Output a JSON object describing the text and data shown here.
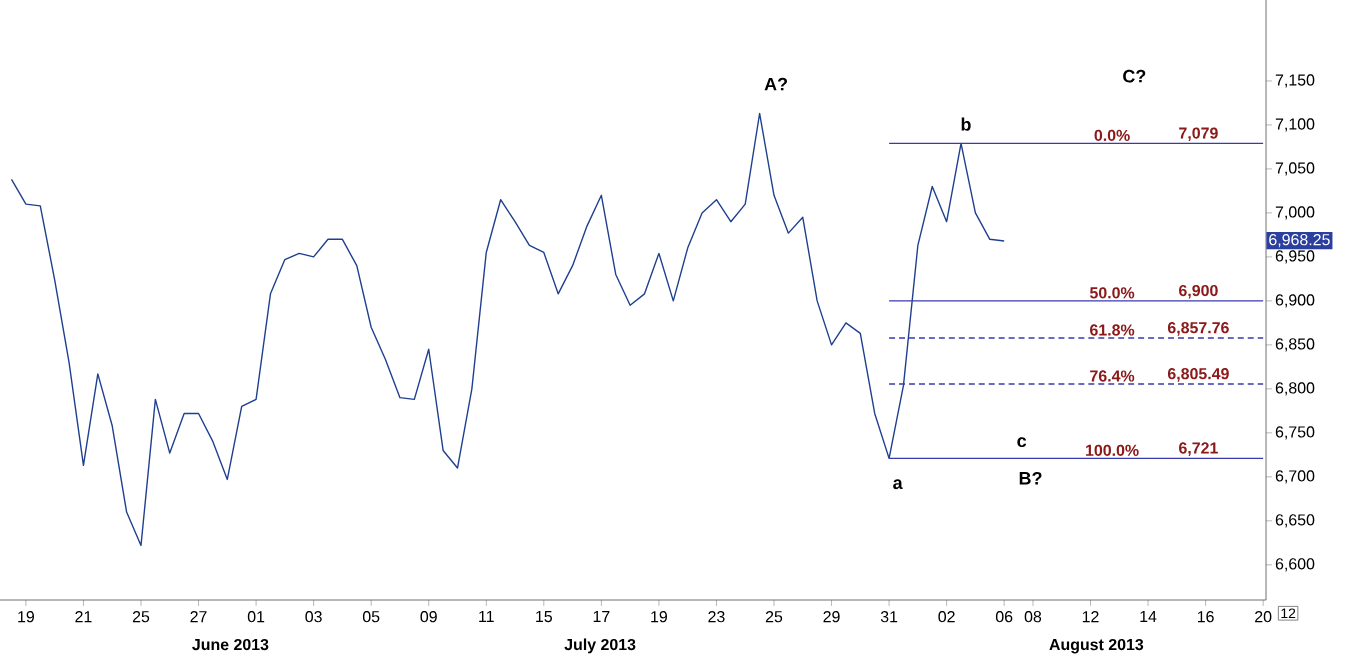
{
  "chart_data": {
    "type": "line",
    "categories": [
      null,
      "19",
      null,
      null,
      null,
      "21",
      null,
      null,
      null,
      "25",
      null,
      null,
      null,
      "27",
      null,
      null,
      null,
      "01",
      null,
      null,
      null,
      "03",
      null,
      null,
      null,
      "05",
      null,
      null,
      null,
      "09",
      null,
      null,
      null,
      "11",
      null,
      null,
      null,
      "15",
      null,
      null,
      null,
      "17",
      null,
      null,
      null,
      "19",
      null,
      null,
      null,
      "23",
      null,
      null,
      null,
      "25",
      null,
      null,
      null,
      "29",
      null,
      null,
      null,
      "31",
      null,
      null,
      null,
      "02",
      null,
      null,
      null,
      "06",
      null,
      "08",
      null,
      null,
      null,
      "12",
      null,
      null,
      null,
      "14",
      null,
      null,
      null,
      "16",
      null,
      null,
      null,
      "20"
    ],
    "series": [
      {
        "color": "#1f3f8f",
        "line_style": "solid",
        "values": [
          7038,
          7010,
          7008,
          6924,
          6830,
          6713,
          6817,
          6758,
          6660,
          6622,
          6788,
          6727,
          6772,
          6772,
          6740,
          6697,
          6780,
          6788,
          6908,
          6947,
          6954,
          6950,
          6970,
          6970,
          6940,
          6870,
          6833,
          6790,
          6788,
          6845,
          6730,
          6710,
          6800,
          6955,
          7015,
          6990,
          6963,
          6955,
          6908,
          6940,
          6985,
          7020,
          6930,
          6895,
          6908,
          6954,
          6900,
          6960,
          7000,
          7015,
          6990,
          7010,
          7113,
          7020,
          6977,
          6995,
          6900,
          6850,
          6875,
          6863,
          6772,
          6721,
          6804,
          6963,
          7030,
          6990,
          7079,
          7000,
          6970,
          6968,
          null,
          null,
          null,
          null,
          null,
          null,
          null,
          null,
          null,
          null,
          null,
          null,
          null,
          null,
          null,
          null,
          null,
          null
        ]
      },
      {
        "color": "#3a3ab0",
        "line_style": "solid",
        "values": [
          null,
          null,
          null,
          null,
          null,
          null,
          null,
          null,
          null,
          null,
          null,
          null,
          null,
          null,
          null,
          null,
          null,
          null,
          null,
          null,
          null,
          null,
          null,
          null,
          null,
          null,
          null,
          null,
          null,
          null,
          null,
          null,
          null,
          null,
          null,
          null,
          null,
          null,
          null,
          null,
          null,
          null,
          null,
          null,
          null,
          null,
          null,
          null,
          null,
          null,
          null,
          null,
          null,
          null,
          null,
          null,
          null,
          null,
          null,
          null,
          null,
          7079,
          7079,
          7079,
          7079,
          7079,
          7079,
          7079,
          7079,
          7079,
          7079,
          7079,
          7079,
          7079,
          7079,
          7079,
          7079,
          7079,
          7079,
          7079,
          7079,
          7079,
          7079,
          7079,
          7079,
          7079,
          7079,
          7079
        ]
      },
      {
        "color": "#3a3ab0",
        "line_style": "solid",
        "values": [
          null,
          null,
          null,
          null,
          null,
          null,
          null,
          null,
          null,
          null,
          null,
          null,
          null,
          null,
          null,
          null,
          null,
          null,
          null,
          null,
          null,
          null,
          null,
          null,
          null,
          null,
          null,
          null,
          null,
          null,
          null,
          null,
          null,
          null,
          null,
          null,
          null,
          null,
          null,
          null,
          null,
          null,
          null,
          null,
          null,
          null,
          null,
          null,
          null,
          null,
          null,
          null,
          null,
          null,
          null,
          null,
          null,
          null,
          null,
          null,
          null,
          6900,
          6900,
          6900,
          6900,
          6900,
          6900,
          6900,
          6900,
          6900,
          6900,
          6900,
          6900,
          6900,
          6900,
          6900,
          6900,
          6900,
          6900,
          6900,
          6900,
          6900,
          6900,
          6900,
          6900,
          6900,
          6900,
          6900
        ]
      },
      {
        "color": "#3a3ab0",
        "line_style": "dashed",
        "values": [
          null,
          null,
          null,
          null,
          null,
          null,
          null,
          null,
          null,
          null,
          null,
          null,
          null,
          null,
          null,
          null,
          null,
          null,
          null,
          null,
          null,
          null,
          null,
          null,
          null,
          null,
          null,
          null,
          null,
          null,
          null,
          null,
          null,
          null,
          null,
          null,
          null,
          null,
          null,
          null,
          null,
          null,
          null,
          null,
          null,
          null,
          null,
          null,
          null,
          null,
          null,
          null,
          null,
          null,
          null,
          null,
          null,
          null,
          null,
          null,
          null,
          6857.76,
          6857.76,
          6857.76,
          6857.76,
          6857.76,
          6857.76,
          6857.76,
          6857.76,
          6857.76,
          6857.76,
          6857.76,
          6857.76,
          6857.76,
          6857.76,
          6857.76,
          6857.76,
          6857.76,
          6857.76,
          6857.76,
          6857.76,
          6857.76,
          6857.76,
          6857.76,
          6857.76,
          6857.76,
          6857.76,
          6857.76
        ]
      },
      {
        "color": "#3a3ab0",
        "line_style": "dashed",
        "values": [
          null,
          null,
          null,
          null,
          null,
          null,
          null,
          null,
          null,
          null,
          null,
          null,
          null,
          null,
          null,
          null,
          null,
          null,
          null,
          null,
          null,
          null,
          null,
          null,
          null,
          null,
          null,
          null,
          null,
          null,
          null,
          null,
          null,
          null,
          null,
          null,
          null,
          null,
          null,
          null,
          null,
          null,
          null,
          null,
          null,
          null,
          null,
          null,
          null,
          null,
          null,
          null,
          null,
          null,
          null,
          null,
          null,
          null,
          null,
          null,
          null,
          6805.49,
          6805.49,
          6805.49,
          6805.49,
          6805.49,
          6805.49,
          6805.49,
          6805.49,
          6805.49,
          6805.49,
          6805.49,
          6805.49,
          6805.49,
          6805.49,
          6805.49,
          6805.49,
          6805.49,
          6805.49,
          6805.49,
          6805.49,
          6805.49,
          6805.49,
          6805.49,
          6805.49,
          6805.49,
          6805.49,
          6805.49
        ]
      },
      {
        "color": "#3a3ab0",
        "line_style": "solid",
        "values": [
          null,
          null,
          null,
          null,
          null,
          null,
          null,
          null,
          null,
          null,
          null,
          null,
          null,
          null,
          null,
          null,
          null,
          null,
          null,
          null,
          null,
          null,
          null,
          null,
          null,
          null,
          null,
          null,
          null,
          null,
          null,
          null,
          null,
          null,
          null,
          null,
          null,
          null,
          null,
          null,
          null,
          null,
          null,
          null,
          null,
          null,
          null,
          null,
          null,
          null,
          null,
          null,
          null,
          null,
          null,
          null,
          null,
          null,
          null,
          null,
          null,
          6721,
          6721,
          6721,
          6721,
          6721,
          6721,
          6721,
          6721,
          6721,
          6721,
          6721,
          6721,
          6721,
          6721,
          6721,
          6721,
          6721,
          6721,
          6721,
          6721,
          6721,
          6721,
          6721,
          6721,
          6721,
          6721,
          6721
        ]
      }
    ],
    "ylim": [
      6560,
      7242
    ],
    "yticks": [
      {
        "value": 6600,
        "label": "6,600"
      },
      {
        "value": 6650,
        "label": "6,650"
      },
      {
        "value": 6700,
        "label": "6,700"
      },
      {
        "value": 6750,
        "label": "6,750"
      },
      {
        "value": 6800,
        "label": "6,800"
      },
      {
        "value": 6850,
        "label": "6,850"
      },
      {
        "value": 6900,
        "label": "6,900"
      },
      {
        "value": 6950,
        "label": "6,950"
      },
      {
        "value": 7000,
        "label": "7,000"
      },
      {
        "value": 7050,
        "label": "7,050"
      },
      {
        "value": 7100,
        "label": "7,100"
      },
      {
        "value": 7150,
        "label": "7,150"
      }
    ],
    "annotations": [
      "0.0%",
      "7,079",
      "50.0%",
      "6,900",
      "61.8%",
      "6,857.76",
      "76.4%",
      "6,805.49",
      "100.0%",
      "6,721",
      "6,968.25",
      "A?",
      "b",
      "C?",
      "a",
      "c",
      "B?",
      "June 2013",
      "July 2013",
      "August 2013",
      "12"
    ]
  }
}
